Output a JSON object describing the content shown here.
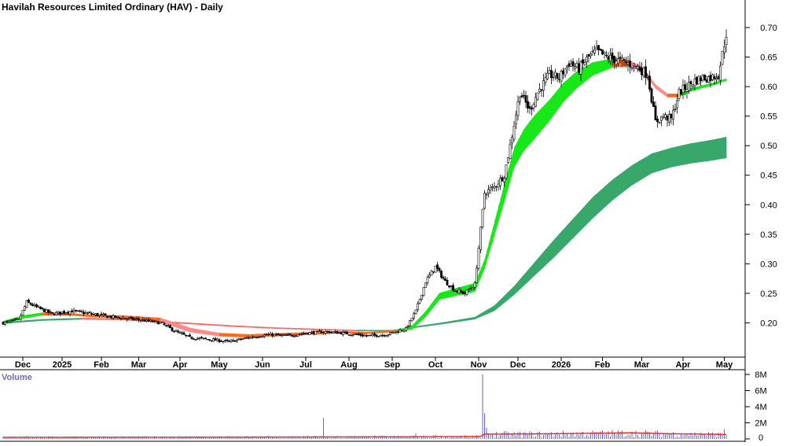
{
  "chart_data": [
    {
      "type": "candlestick",
      "title": "Havilah Resources Limited Ordinary (HAV) - Daily",
      "ylim": [
        0.15,
        0.72
      ],
      "y_ticks": [
        0.2,
        0.25,
        0.3,
        0.35,
        0.4,
        0.45,
        0.5,
        0.55,
        0.6,
        0.65,
        0.7
      ],
      "y_tick_labels": [
        "0.20",
        "0.25",
        "0.30",
        "0.35",
        "0.40",
        "0.45",
        "0.50",
        "0.55",
        "0.60",
        "0.65",
        "0.70"
      ],
      "x_tick_labels": [
        "Dec",
        "2025",
        "Feb",
        "Mar",
        "Apr",
        "May",
        "Jun",
        "Jul",
        "Aug",
        "Sep",
        "Oct",
        "Nov",
        "Dec",
        "2026",
        "Feb",
        "Mar",
        "Apr",
        "May"
      ],
      "x_tick_index": [
        10,
        30,
        50,
        69,
        90,
        110,
        132,
        154,
        176,
        198,
        220,
        242,
        262,
        284,
        305,
        325,
        346,
        367
      ],
      "close_keypoints": [
        [
          0,
          0.2
        ],
        [
          8,
          0.205
        ],
        [
          12,
          0.235
        ],
        [
          18,
          0.225
        ],
        [
          25,
          0.215
        ],
        [
          35,
          0.22
        ],
        [
          45,
          0.215
        ],
        [
          55,
          0.21
        ],
        [
          70,
          0.205
        ],
        [
          80,
          0.2
        ],
        [
          88,
          0.185
        ],
        [
          95,
          0.175
        ],
        [
          105,
          0.172
        ],
        [
          115,
          0.168
        ],
        [
          125,
          0.175
        ],
        [
          135,
          0.18
        ],
        [
          145,
          0.178
        ],
        [
          155,
          0.183
        ],
        [
          165,
          0.185
        ],
        [
          175,
          0.182
        ],
        [
          185,
          0.178
        ],
        [
          195,
          0.18
        ],
        [
          205,
          0.19
        ],
        [
          210,
          0.22
        ],
        [
          215,
          0.27
        ],
        [
          220,
          0.295
        ],
        [
          225,
          0.27
        ],
        [
          230,
          0.255
        ],
        [
          235,
          0.25
        ],
        [
          240,
          0.265
        ],
        [
          245,
          0.42
        ],
        [
          250,
          0.43
        ],
        [
          255,
          0.45
        ],
        [
          258,
          0.5
        ],
        [
          263,
          0.59
        ],
        [
          268,
          0.56
        ],
        [
          272,
          0.59
        ],
        [
          278,
          0.62
        ],
        [
          283,
          0.615
        ],
        [
          288,
          0.64
        ],
        [
          293,
          0.63
        ],
        [
          298,
          0.65
        ],
        [
          302,
          0.66
        ],
        [
          307,
          0.65
        ],
        [
          312,
          0.645
        ],
        [
          317,
          0.64
        ],
        [
          322,
          0.635
        ],
        [
          328,
          0.62
        ],
        [
          332,
          0.54
        ],
        [
          336,
          0.55
        ],
        [
          340,
          0.545
        ],
        [
          344,
          0.59
        ],
        [
          348,
          0.6
        ],
        [
          352,
          0.61
        ],
        [
          356,
          0.615
        ],
        [
          360,
          0.615
        ],
        [
          364,
          0.62
        ],
        [
          368,
          0.69
        ]
      ],
      "ema_short_keypoints": [
        [
          0,
          0.2
        ],
        [
          10,
          0.21
        ],
        [
          20,
          0.215
        ],
        [
          30,
          0.215
        ],
        [
          45,
          0.212
        ],
        [
          60,
          0.21
        ],
        [
          80,
          0.205
        ],
        [
          95,
          0.188
        ],
        [
          110,
          0.18
        ],
        [
          125,
          0.178
        ],
        [
          140,
          0.18
        ],
        [
          155,
          0.182
        ],
        [
          170,
          0.184
        ],
        [
          185,
          0.183
        ],
        [
          200,
          0.186
        ],
        [
          208,
          0.192
        ],
        [
          215,
          0.215
        ],
        [
          222,
          0.245
        ],
        [
          230,
          0.252
        ],
        [
          240,
          0.26
        ],
        [
          245,
          0.3
        ],
        [
          250,
          0.36
        ],
        [
          255,
          0.42
        ],
        [
          260,
          0.48
        ],
        [
          265,
          0.51
        ],
        [
          270,
          0.53
        ],
        [
          278,
          0.56
        ],
        [
          285,
          0.59
        ],
        [
          292,
          0.612
        ],
        [
          300,
          0.63
        ],
        [
          310,
          0.64
        ],
        [
          318,
          0.64
        ],
        [
          325,
          0.63
        ],
        [
          332,
          0.6
        ],
        [
          338,
          0.585
        ],
        [
          344,
          0.585
        ],
        [
          350,
          0.595
        ],
        [
          356,
          0.6
        ],
        [
          362,
          0.605
        ],
        [
          368,
          0.612
        ]
      ],
      "ema_short_width_keypoints": [
        [
          0,
          0.006
        ],
        [
          40,
          0.004
        ],
        [
          90,
          0.008
        ],
        [
          110,
          0.006
        ],
        [
          200,
          0.003
        ],
        [
          215,
          0.01
        ],
        [
          245,
          0.016
        ],
        [
          255,
          0.03
        ],
        [
          270,
          0.04
        ],
        [
          290,
          0.03
        ],
        [
          310,
          0.015
        ],
        [
          325,
          0.008
        ],
        [
          340,
          0.006
        ],
        [
          368,
          0.004
        ]
      ],
      "ema_long_keypoints": [
        [
          0,
          0.2
        ],
        [
          20,
          0.205
        ],
        [
          40,
          0.207
        ],
        [
          60,
          0.206
        ],
        [
          80,
          0.202
        ],
        [
          100,
          0.198
        ],
        [
          120,
          0.194
        ],
        [
          140,
          0.191
        ],
        [
          160,
          0.189
        ],
        [
          180,
          0.187
        ],
        [
          198,
          0.187
        ],
        [
          210,
          0.193
        ],
        [
          225,
          0.2
        ],
        [
          240,
          0.208
        ],
        [
          250,
          0.225
        ],
        [
          260,
          0.255
        ],
        [
          270,
          0.29
        ],
        [
          280,
          0.325
        ],
        [
          290,
          0.36
        ],
        [
          300,
          0.395
        ],
        [
          310,
          0.425
        ],
        [
          320,
          0.45
        ],
        [
          330,
          0.47
        ],
        [
          340,
          0.48
        ],
        [
          350,
          0.487
        ],
        [
          360,
          0.492
        ],
        [
          368,
          0.497
        ]
      ],
      "ema_long_width_keypoints": [
        [
          0,
          0.003
        ],
        [
          200,
          0.002
        ],
        [
          240,
          0.004
        ],
        [
          260,
          0.015
        ],
        [
          280,
          0.03
        ],
        [
          300,
          0.036
        ],
        [
          320,
          0.034
        ],
        [
          340,
          0.033
        ],
        [
          368,
          0.036
        ]
      ]
    },
    {
      "type": "bar",
      "title": "Volume",
      "ylim": [
        0,
        8200000
      ],
      "y_ticks": [
        0,
        2000000,
        4000000,
        6000000,
        8000000
      ],
      "y_tick_labels": [
        "0",
        "2M",
        "4M",
        "6M",
        "8M"
      ],
      "spikes": [
        [
          12,
          380000
        ],
        [
          135,
          360000
        ],
        [
          163,
          2600000
        ],
        [
          210,
          700000
        ],
        [
          220,
          500000
        ],
        [
          244,
          8000000
        ],
        [
          245,
          3200000
        ],
        [
          246,
          1400000
        ],
        [
          282,
          800000
        ],
        [
          320,
          900000
        ],
        [
          345,
          700000
        ],
        [
          355,
          750000
        ],
        [
          367,
          1200000
        ]
      ],
      "ma_keypoints": [
        [
          0,
          200000
        ],
        [
          100,
          220000
        ],
        [
          200,
          260000
        ],
        [
          243,
          300000
        ],
        [
          245,
          600000
        ],
        [
          270,
          620000
        ],
        [
          300,
          700000
        ],
        [
          320,
          760000
        ],
        [
          340,
          640000
        ],
        [
          368,
          560000
        ]
      ]
    }
  ],
  "colors": {
    "candle_up": "#ffffff",
    "candle_down": "#000000",
    "ema_short_up": "#18e818",
    "ema_short_down": "#ff8a8a",
    "ema_short_turn": "#ff6a1a",
    "ema_long_up": "#37a86a",
    "ema_long_down": "#ff6666",
    "volume_bar": "#5555cc",
    "volume_ma": "#ee2222",
    "volume_label": "#6a6acd"
  }
}
